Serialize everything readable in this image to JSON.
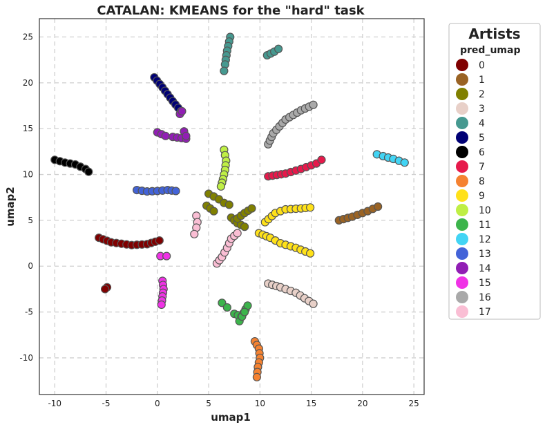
{
  "chart_data": {
    "type": "scatter",
    "title": "CATALAN: KMEANS for the \"hard\" task",
    "xlabel": "umap1",
    "ylabel": "umap2",
    "xlim": [
      -11.5,
      26
    ],
    "ylim": [
      -14,
      27
    ],
    "xticks": [
      -10,
      -5,
      0,
      5,
      10,
      15,
      20,
      25
    ],
    "yticks": [
      -10,
      -5,
      0,
      5,
      10,
      15,
      20,
      25
    ],
    "grid": true,
    "legend": {
      "title": "Artists",
      "subtitle": "pred_umap",
      "placement": "outside-right"
    },
    "series": [
      {
        "name": "0",
        "color": "#800000",
        "segments": [
          [
            [
              -5.7,
              3.1
            ],
            [
              -4.5,
              2.6
            ],
            [
              -2.5,
              2.3
            ],
            [
              -1,
              2.4
            ],
            [
              0.2,
              2.8
            ]
          ],
          [
            [
              -4.9,
              -2.3
            ],
            [
              -5.1,
              -2.5
            ]
          ]
        ]
      },
      {
        "name": "1",
        "color": "#9a6324",
        "segments": [
          [
            [
              17.7,
              5.0
            ],
            [
              19,
              5.4
            ],
            [
              20.5,
              6.0
            ],
            [
              21.5,
              6.5
            ]
          ]
        ]
      },
      {
        "name": "2",
        "color": "#808000",
        "segments": [
          [
            [
              5,
              7.9
            ],
            [
              6,
              7.3
            ],
            [
              6.5,
              6.9
            ],
            [
              7,
              6.7
            ]
          ],
          [
            [
              4.8,
              6.6
            ],
            [
              5.5,
              6.0
            ]
          ],
          [
            [
              7.2,
              5.3
            ],
            [
              7.8,
              4.7
            ],
            [
              8.5,
              4.3
            ]
          ],
          [
            [
              7.8,
              5.2
            ],
            [
              8.5,
              5.8
            ],
            [
              9.2,
              6.3
            ]
          ]
        ]
      },
      {
        "name": "3",
        "color": "#e8d0c8",
        "segments": [
          [
            [
              10.8,
              -1.9
            ],
            [
              12,
              -2.3
            ],
            [
              13.5,
              -2.9
            ],
            [
              15.2,
              -4.1
            ]
          ]
        ]
      },
      {
        "name": "4",
        "color": "#469990",
        "segments": [
          [
            [
              7.1,
              25
            ],
            [
              6.8,
              23.5
            ],
            [
              6.6,
              22
            ],
            [
              6.5,
              21.3
            ]
          ],
          [
            [
              10.7,
              23.0
            ],
            [
              11.4,
              23.4
            ],
            [
              11.8,
              23.7
            ]
          ]
        ]
      },
      {
        "name": "5",
        "color": "#000075",
        "segments": [
          [
            [
              -0.3,
              20.6
            ],
            [
              0.5,
              19.5
            ],
            [
              1.5,
              18
            ],
            [
              2.3,
              16.9
            ]
          ]
        ]
      },
      {
        "name": "6",
        "color": "#000000",
        "segments": [
          [
            [
              -10,
              11.6
            ],
            [
              -9,
              11.3
            ],
            [
              -8,
              11.1
            ],
            [
              -7,
              10.6
            ],
            [
              -6.7,
              10.3
            ]
          ]
        ]
      },
      {
        "name": "7",
        "color": "#e6194b",
        "segments": [
          [
            [
              10.8,
              9.8
            ],
            [
              12.5,
              10.1
            ],
            [
              14,
              10.6
            ],
            [
              15.5,
              11.2
            ],
            [
              16,
              11.6
            ]
          ]
        ]
      },
      {
        "name": "8",
        "color": "#f58231",
        "segments": [
          [
            [
              9.5,
              -8.2
            ],
            [
              9.9,
              -9
            ],
            [
              10,
              -10
            ],
            [
              9.8,
              -11
            ],
            [
              9.7,
              -12.1
            ]
          ]
        ]
      },
      {
        "name": "9",
        "color": "#ffe119",
        "segments": [
          [
            [
              10.5,
              4.8
            ],
            [
              11.5,
              5.8
            ],
            [
              12.5,
              6.2
            ],
            [
              14,
              6.3
            ],
            [
              14.9,
              6.4
            ]
          ],
          [
            [
              9.9,
              3.6
            ],
            [
              11,
              3.1
            ],
            [
              12,
              2.5
            ],
            [
              13.5,
              2
            ],
            [
              14.9,
              1.4
            ]
          ]
        ]
      },
      {
        "name": "10",
        "color": "#bfef45",
        "segments": [
          [
            [
              6.5,
              12.7
            ],
            [
              6.7,
              11.5
            ],
            [
              6.6,
              10.5
            ],
            [
              6.4,
              9.5
            ],
            [
              6.2,
              8.7
            ]
          ]
        ]
      },
      {
        "name": "11",
        "color": "#3cb44b",
        "segments": [
          [
            [
              6.3,
              -4
            ],
            [
              6.8,
              -4.5
            ]
          ],
          [
            [
              7.5,
              -5.2
            ],
            [
              8.2,
              -5.5
            ],
            [
              8.8,
              -4.3
            ]
          ],
          [
            [
              8.0,
              -6.0
            ],
            [
              8.5,
              -5.0
            ]
          ]
        ]
      },
      {
        "name": "12",
        "color": "#42d4f4",
        "segments": [
          [
            [
              21.4,
              12.2
            ],
            [
              22,
              12.0
            ],
            [
              23,
              11.7
            ],
            [
              24.1,
              11.3
            ]
          ]
        ]
      },
      {
        "name": "13",
        "color": "#4363d8",
        "segments": [
          [
            [
              -2,
              8.3
            ],
            [
              -1,
              8.15
            ],
            [
              0,
              8.2
            ],
            [
              1,
              8.3
            ],
            [
              1.8,
              8.2
            ]
          ]
        ]
      },
      {
        "name": "14",
        "color": "#911eb4",
        "segments": [
          [
            [
              0,
              14.6
            ],
            [
              0.8,
              14.2
            ],
            [
              1.5,
              14.1
            ],
            [
              2.8,
              13.9
            ]
          ],
          [
            [
              2.6,
              14.7
            ],
            [
              2.8,
              14.2
            ]
          ],
          [
            [
              2.2,
              16.6
            ],
            [
              2.4,
              16.9
            ]
          ]
        ]
      },
      {
        "name": "15",
        "color": "#f032e6",
        "segments": [
          [
            [
              0.5,
              -1.6
            ],
            [
              0.6,
              -2.5
            ],
            [
              0.5,
              -3.3
            ],
            [
              0.4,
              -4.2
            ]
          ],
          [
            [
              0.3,
              1.1
            ],
            [
              0.9,
              1.1
            ]
          ]
        ]
      },
      {
        "name": "16",
        "color": "#a9a9a9",
        "segments": [
          [
            [
              10.8,
              13.3
            ],
            [
              11.3,
              14.5
            ],
            [
              12.5,
              16
            ],
            [
              14,
              17
            ],
            [
              15.2,
              17.6
            ]
          ]
        ]
      },
      {
        "name": "17",
        "color": "#fabed4",
        "segments": [
          [
            [
              3.8,
              5.5
            ],
            [
              3.9,
              4.8
            ],
            [
              3.8,
              4.2
            ],
            [
              3.6,
              3.5
            ]
          ],
          [
            [
              5.8,
              0.3
            ],
            [
              6.3,
              1.0
            ],
            [
              6.8,
              2.0
            ],
            [
              7.2,
              3.0
            ],
            [
              7.8,
              3.6
            ]
          ]
        ]
      }
    ]
  }
}
